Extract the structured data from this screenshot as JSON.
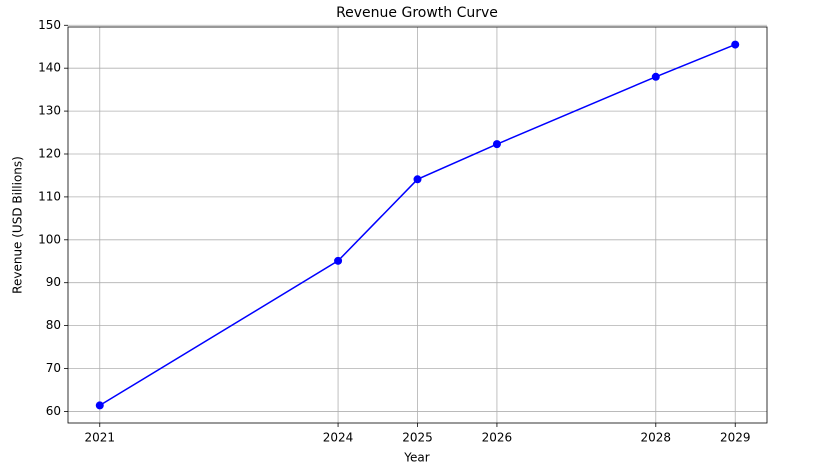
{
  "chart_data": {
    "type": "line",
    "title": "Revenue Growth Curve",
    "x_label": "Year",
    "y_label": "Revenue (USD Billions)",
    "x": [
      2021,
      2024,
      2025,
      2026,
      2028,
      2029
    ],
    "series": [
      {
        "name": "Revenue",
        "color": "#0000ff",
        "values": [
          61.4,
          95.1,
          114.1,
          122.3,
          138,
          145.5
        ]
      }
    ],
    "xlim": [
      2020.6,
      2029.4
    ],
    "xticks": [
      2021,
      2024,
      2025,
      2026,
      2028,
      2029
    ],
    "ylim": [
      57.3,
      149.6
    ],
    "yticks": [
      60,
      70,
      80,
      90,
      100,
      110,
      120,
      130,
      140,
      150
    ],
    "grid": true
  }
}
